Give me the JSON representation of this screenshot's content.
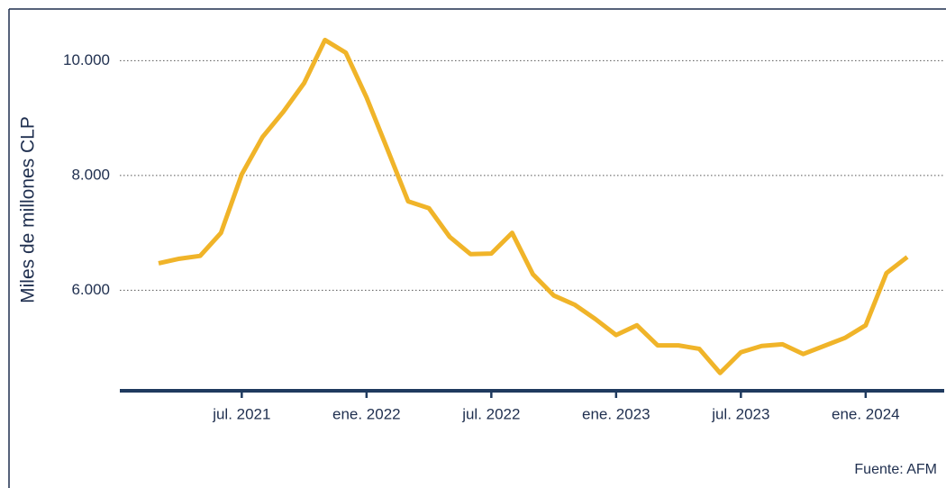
{
  "chart_data": {
    "type": "line",
    "y_label": "Miles de millones CLP",
    "source": "Fuente: AFM",
    "categories": [
      null,
      null,
      null,
      null,
      "jul. 2021",
      null,
      null,
      null,
      null,
      null,
      "ene. 2022",
      null,
      null,
      null,
      null,
      null,
      "jul. 2022",
      null,
      null,
      null,
      null,
      null,
      "ene. 2023",
      null,
      null,
      null,
      null,
      null,
      "jul. 2023",
      null,
      null,
      null,
      null,
      null,
      "ene. 2024",
      null,
      null
    ],
    "series": [
      {
        "color": "#f0b429",
        "values": [
          6470,
          6550,
          6600,
          7000,
          8020,
          8670,
          9110,
          9610,
          10360,
          10140,
          9360,
          8460,
          7550,
          7430,
          6930,
          6630,
          6640,
          7000,
          6280,
          5910,
          5750,
          5500,
          5220,
          5390,
          5040,
          5040,
          4980,
          4560,
          4920,
          5030,
          5060,
          4890,
          5030,
          5170,
          5390,
          6300,
          6580
        ]
      }
    ],
    "ylim": [
      4250,
      10900
    ],
    "yticks": [
      {
        "value": 6000,
        "label": "6.000"
      },
      {
        "value": 8000,
        "label": "8.000"
      },
      {
        "value": 10000,
        "label": "10.000"
      }
    ],
    "grid": true
  }
}
